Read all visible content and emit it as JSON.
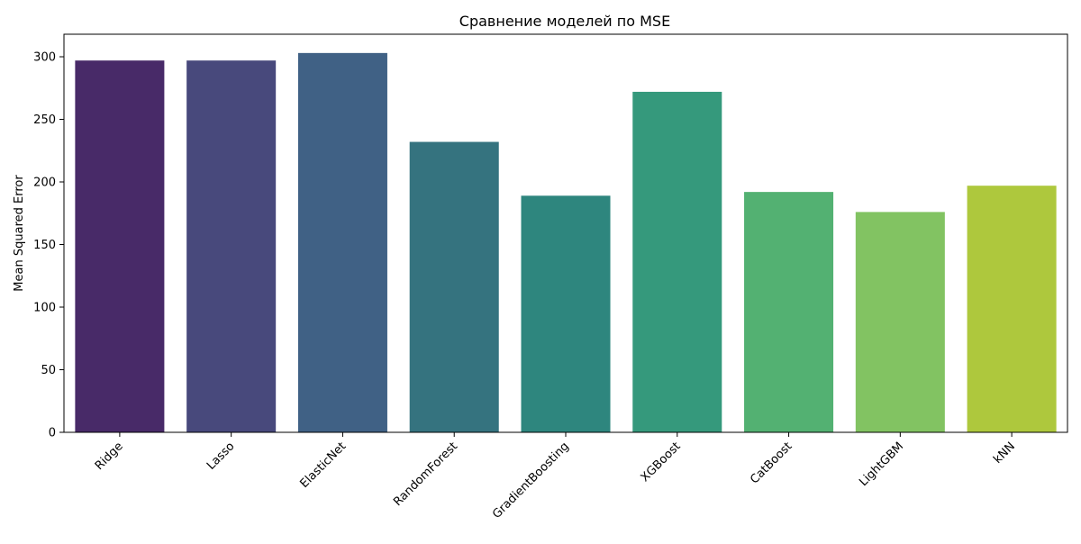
{
  "chart_data": {
    "type": "bar",
    "title": "Сравнение моделей по MSE",
    "xlabel": "",
    "ylabel": "Mean Squared Error",
    "categories": [
      "Ridge",
      "Lasso",
      "ElasticNet",
      "RandomForest",
      "GradientBoosting",
      "XGBoost",
      "CatBoost",
      "LightGBM",
      "kNN"
    ],
    "values": [
      297,
      297,
      303,
      232,
      189,
      272,
      192,
      176,
      197
    ],
    "colors": [
      "#482a68",
      "#48497c",
      "#406185",
      "#35737f",
      "#2e867e",
      "#35997c",
      "#53b172",
      "#82c362",
      "#aec83d"
    ],
    "ylim": [
      0,
      318
    ],
    "yticks": [
      0,
      50,
      100,
      150,
      200,
      250,
      300
    ],
    "grid": false,
    "legend": "none"
  }
}
